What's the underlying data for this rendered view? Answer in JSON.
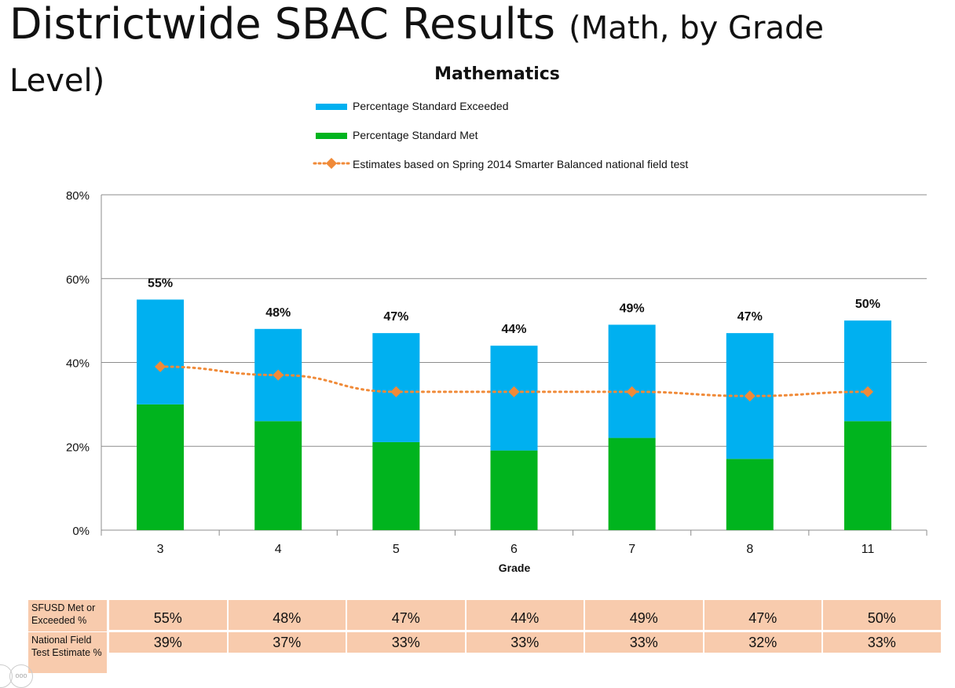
{
  "slide": {
    "title_main": "Districtwide SBAC Results",
    "title_sub": "(Math, by Grade Level)"
  },
  "colors": {
    "exceeded": "#00b0f0",
    "met": "#00b41e",
    "estimate": "#f08a38",
    "grid": "#8c8c8c",
    "table_fill": "#f8cbad"
  },
  "chart_data": {
    "type": "bar",
    "stacked": true,
    "title": "Mathematics",
    "xlabel": "Grade",
    "ylabel": "",
    "ylim": [
      0,
      80
    ],
    "yticks": [
      "0%",
      "20%",
      "40%",
      "60%",
      "80%"
    ],
    "categories": [
      "3",
      "4",
      "5",
      "6",
      "7",
      "8",
      "11"
    ],
    "series": [
      {
        "name": "Percentage Standard Exceeded",
        "kind": "bar",
        "values": [
          25,
          22,
          26,
          25,
          27,
          30,
          24
        ]
      },
      {
        "name": "Percentage Standard Met",
        "kind": "bar",
        "values": [
          30,
          26,
          21,
          19,
          22,
          17,
          26
        ]
      },
      {
        "name": "Estimates based on Spring 2014 Smarter Balanced national field test",
        "kind": "line",
        "values": [
          39,
          37,
          33,
          33,
          33,
          32,
          33
        ]
      }
    ],
    "total_labels": [
      "55%",
      "48%",
      "47%",
      "44%",
      "49%",
      "47%",
      "50%"
    ],
    "legend_position": "top",
    "grid": true
  },
  "table": {
    "rows": [
      {
        "label": "SFUSD Met or Exceeded %",
        "values": [
          "55%",
          "48%",
          "47%",
          "44%",
          "49%",
          "47%",
          "50%"
        ]
      },
      {
        "label": "National Field Test Estimate %",
        "values": [
          "39%",
          "37%",
          "33%",
          "33%",
          "33%",
          "32%",
          "33%"
        ]
      }
    ]
  }
}
